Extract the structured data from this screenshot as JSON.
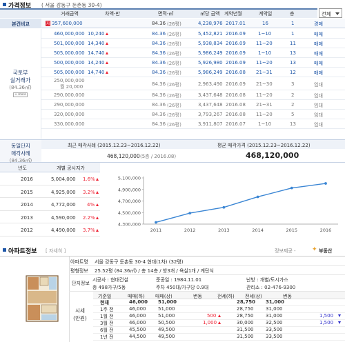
{
  "header": {
    "title": "가격정보",
    "address": "( 서울 강동구 둔촌동 30-4)",
    "filter_value": "전체"
  },
  "price_table": {
    "columns": [
      "거래금액",
      "차액-만",
      "면적-㎡",
      "㎡당 금액",
      "계약년월",
      "계약일",
      "층"
    ],
    "compare_label": "본건비교",
    "compare_row": {
      "badge": "지",
      "price": "357,600,000",
      "diff": "",
      "area": "84.36",
      "area_py": "(26평)",
      "per_m2": "4,238,976",
      "ym": "2017.01",
      "day": "16",
      "floor": "1",
      "type": "경매"
    },
    "group_label_1": "국토부",
    "group_label_2": "실거래가",
    "group_label_3": "(84.36㎡)",
    "group_btn": "+ more",
    "rows": [
      {
        "price": "460,000,000",
        "diff": "10,240",
        "dir": "up",
        "area": "84.36",
        "area_py": "(26평)",
        "per_m2": "5,452,821",
        "ym": "2016.09",
        "day": "1~10",
        "floor": "1",
        "type": "매매"
      },
      {
        "price": "501,000,000",
        "diff": "14,340",
        "dir": "up",
        "area": "84.36",
        "area_py": "(26평)",
        "per_m2": "5,938,834",
        "ym": "2016.09",
        "day": "11~20",
        "floor": "11",
        "type": "매매"
      },
      {
        "price": "505,000,000",
        "diff": "14,740",
        "dir": "up",
        "area": "84.36",
        "area_py": "(26평)",
        "per_m2": "5,986,249",
        "ym": "2016.09",
        "day": "1~10",
        "floor": "13",
        "type": "매매"
      },
      {
        "price": "500,000,000",
        "diff": "14,240",
        "dir": "up",
        "area": "84.36",
        "area_py": "(26평)",
        "per_m2": "5,926,980",
        "ym": "2016.09",
        "day": "11~20",
        "floor": "13",
        "type": "매매"
      },
      {
        "price": "505,000,000",
        "diff": "14,740",
        "dir": "up",
        "area": "84.36",
        "area_py": "(26평)",
        "per_m2": "5,986,249",
        "ym": "2016.08",
        "day": "21~31",
        "floor": "12",
        "type": "매매"
      },
      {
        "price": "250,000,000",
        "price2": "월 20,000",
        "diff": "",
        "dir": "",
        "area": "84.36",
        "area_py": "(26평)",
        "per_m2": "2,963,490",
        "ym": "2016.09",
        "day": "21~30",
        "floor": "3",
        "type": "임대"
      },
      {
        "price": "290,000,000",
        "diff": "",
        "dir": "",
        "area": "84.36",
        "area_py": "(26평)",
        "per_m2": "3,437,648",
        "ym": "2016.08",
        "day": "11~20",
        "floor": "2",
        "type": "임대"
      },
      {
        "price": "290,000,000",
        "diff": "",
        "dir": "",
        "area": "84.36",
        "area_py": "(26평)",
        "per_m2": "3,437,648",
        "ym": "2016.08",
        "day": "21~31",
        "floor": "2",
        "type": "임대"
      },
      {
        "price": "320,000,000",
        "diff": "",
        "dir": "",
        "area": "84.36",
        "area_py": "(26평)",
        "per_m2": "3,793,267",
        "ym": "2016.08",
        "day": "11~20",
        "floor": "5",
        "type": "임대"
      },
      {
        "price": "330,000,000",
        "diff": "",
        "dir": "",
        "area": "84.36",
        "area_py": "(26평)",
        "per_m2": "3,911,807",
        "ym": "2016.07",
        "day": "1~10",
        "floor": "13",
        "type": "임대"
      }
    ]
  },
  "complex": {
    "label_1": "동일단지",
    "label_2": "매각사례",
    "label_3": "(84.36㎡)",
    "recent_title": "최근 매각사례 (2015.12.23~2016.12.22)",
    "recent_value": "468,120,000",
    "recent_sub": "(5층 / 2016.08)",
    "avg_title": "평균 매각가격 (2015.12.23~2016.12.22)",
    "avg_value": "468,120,000"
  },
  "official": {
    "col_year": "년도",
    "col_price": "개별 공시지가",
    "rows": [
      {
        "year": "2016",
        "price": "5,004,000",
        "pct": "1.6%",
        "dir": "up"
      },
      {
        "year": "2015",
        "price": "4,925,000",
        "pct": "3.2%",
        "dir": "up"
      },
      {
        "year": "2014",
        "price": "4,772,000",
        "pct": "4%",
        "dir": "up"
      },
      {
        "year": "2013",
        "price": "4,590,000",
        "pct": "2.2%",
        "dir": "up"
      },
      {
        "year": "2012",
        "price": "4,490,000",
        "pct": "3.7%",
        "dir": "up"
      }
    ]
  },
  "chart_data": {
    "type": "line",
    "x": [
      "2011",
      "2012",
      "2013",
      "2014",
      "2015",
      "2016"
    ],
    "series": [
      {
        "values": [
          4330000,
          4490000,
          4590000,
          4772000,
          4925000,
          5004000
        ]
      }
    ],
    "yticks": [
      "5,100,000",
      "4,900,000",
      "4,700,000",
      "4,500,000",
      "4,300,000"
    ],
    "ylim": [
      4300000,
      5100000
    ],
    "color": "#3b86d4"
  },
  "apt": {
    "title": "아파트정보",
    "detail_btn": "[ 자세히 ]",
    "provider": "정보제공 - ",
    "provider_name": "부동산",
    "name_label": "아파트명",
    "name_value": "서울 강동구 둔촌동 30-4 현대(1차) (32평)",
    "spec_label": "평형정보",
    "spec_value": "25.52평 (84.36㎡) / 총 14층 / 방3개 / 욕실1개 / 계단식",
    "complex_label": "단지정보",
    "builder": "시공사 : 현대건설",
    "completed": "준공일 : 1984.11.01",
    "heating": "난방 : 개별/도시가스",
    "households": "총 498가구/5동",
    "parking": "주차 450대/가구당 0.9대",
    "office": "관리소 : 02-476-9300",
    "market_label_1": "시세",
    "market_label_2": "(만원)",
    "market_cols": [
      "기준일",
      "매매(하)",
      "매매(상)",
      "변동",
      "전세(하)",
      "전세(상)",
      "변동"
    ],
    "market_rows": [
      {
        "d": "현재",
        "a": "46,000",
        "b": "51,000",
        "c": "",
        "cd": "",
        "e": "28,750",
        "f": "31,000",
        "g": "",
        "gd": ""
      },
      {
        "d": "1주 전",
        "a": "46,000",
        "b": "51,000",
        "c": "",
        "cd": "",
        "e": "28,750",
        "f": "31,000",
        "g": "",
        "gd": ""
      },
      {
        "d": "1월 전",
        "a": "46,000",
        "b": "51,000",
        "c": "500",
        "cd": "up",
        "e": "28,750",
        "f": "31,000",
        "g": "1,500",
        "gd": "down"
      },
      {
        "d": "3월 전",
        "a": "46,000",
        "b": "50,500",
        "c": "1,000",
        "cd": "up",
        "e": "30,000",
        "f": "32,500",
        "g": "1,500",
        "gd": "down"
      },
      {
        "d": "6월 전",
        "a": "45,500",
        "b": "49,500",
        "c": "",
        "cd": "",
        "e": "31,500",
        "f": "33,500",
        "g": "",
        "gd": ""
      },
      {
        "d": "1년 전",
        "a": "44,500",
        "b": "49,500",
        "c": "",
        "cd": "",
        "e": "31,500",
        "f": "33,500",
        "g": "",
        "gd": ""
      }
    ]
  }
}
